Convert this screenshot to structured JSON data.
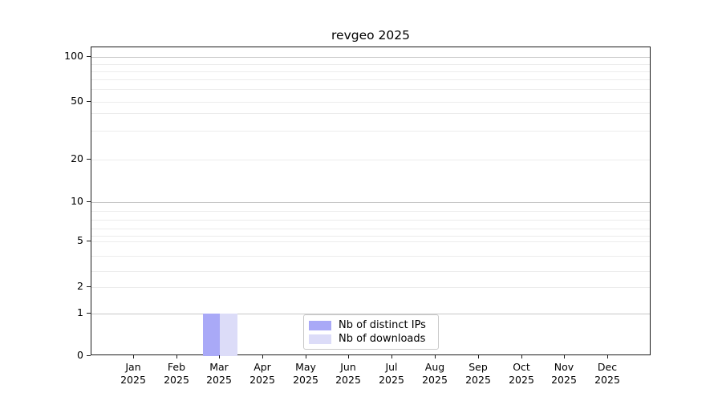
{
  "chart_data": {
    "type": "bar",
    "title": "revgeo 2025",
    "categories": [
      "Jan 2025",
      "Feb 2025",
      "Mar 2025",
      "Apr 2025",
      "May 2025",
      "Jun 2025",
      "Jul 2025",
      "Aug 2025",
      "Sep 2025",
      "Oct 2025",
      "Nov 2025",
      "Dec 2025"
    ],
    "x_axis": {
      "tick_months": [
        "Jan",
        "Feb",
        "Mar",
        "Apr",
        "May",
        "Jun",
        "Jul",
        "Aug",
        "Sep",
        "Oct",
        "Nov",
        "Dec"
      ],
      "tick_year": "2025"
    },
    "y_axis": {
      "scale": "symlog",
      "ticks": [
        0,
        1,
        2,
        5,
        10,
        20,
        50,
        100
      ],
      "minor_gridlines": [
        3,
        4,
        6,
        7,
        8,
        9,
        30,
        40,
        60,
        70,
        80,
        90
      ],
      "range": [
        0,
        100
      ]
    },
    "series": [
      {
        "name": "Nb of distinct IPs",
        "color": "#a9a9f7",
        "values": [
          0,
          0,
          1,
          0,
          0,
          0,
          0,
          0,
          0,
          0,
          0,
          0
        ]
      },
      {
        "name": "Nb of downloads",
        "color": "#dcdcf8",
        "values": [
          0,
          0,
          1,
          0,
          0,
          0,
          0,
          0,
          0,
          0,
          0,
          0
        ]
      }
    ],
    "legend_position": "bottom center",
    "grid": "horizontal log gridlines",
    "colors": {
      "major_grid": "#c8c8c8",
      "minor_grid": "#ececec",
      "spine": "#1a1a1a"
    }
  }
}
